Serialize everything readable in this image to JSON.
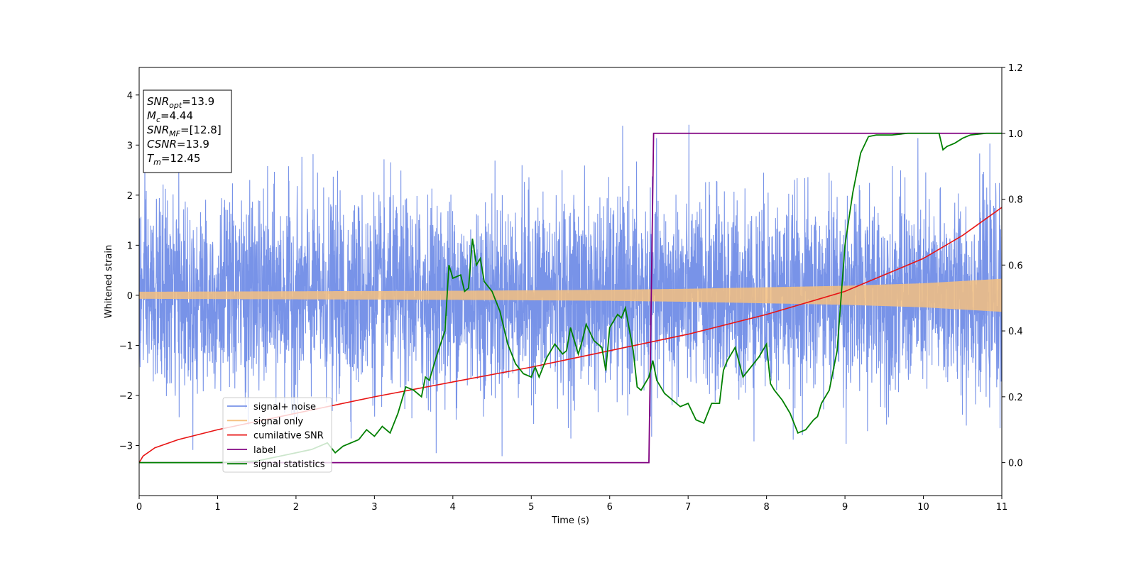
{
  "chart_data": {
    "type": "line",
    "xlabel": "Time (s)",
    "ylabel": "Whitened strain",
    "xlim": [
      0,
      11
    ],
    "ylim": [
      -4,
      4.55
    ],
    "y2lim": [
      -0.1,
      1.2
    ],
    "xticks": [
      0,
      1,
      2,
      3,
      4,
      5,
      6,
      7,
      8,
      9,
      10,
      11
    ],
    "yticks": [
      -3,
      -2,
      -1,
      0,
      1,
      2,
      3,
      4
    ],
    "y2ticks": [
      "0.0",
      "0.2",
      "0.4",
      "0.6",
      "0.8",
      "1.0",
      "1.2"
    ],
    "grid": false,
    "legend_position": "lower-left",
    "annotations": [
      {
        "name": "SNR",
        "sub": "opt",
        "value": "=13.9"
      },
      {
        "name": "M",
        "sub": "c",
        "value": "=4.44"
      },
      {
        "name": "SNR",
        "sub": "MF",
        "value": "=[12.8]"
      },
      {
        "name": "CSNR",
        "sub": "",
        "value": "=13.9"
      },
      {
        "name": "T",
        "sub": "m",
        "value": "=12.45"
      }
    ],
    "series": [
      {
        "name": "signal+ noise",
        "axis": "left",
        "color": "#7893e8",
        "description_envelope": {
          "x": [
            0,
            11
          ],
          "typical_band": [
            -2.0,
            2.0
          ],
          "extreme_max": 4.17,
          "extreme_min": -3.6
        }
      },
      {
        "name": "signal only",
        "axis": "left",
        "color": "#f5c07f",
        "x": [
          0,
          1,
          2,
          3,
          4,
          5,
          6,
          7,
          8,
          9,
          10,
          11
        ],
        "amplitude": [
          0.07,
          0.075,
          0.08,
          0.085,
          0.09,
          0.1,
          0.11,
          0.13,
          0.16,
          0.19,
          0.24,
          0.33
        ]
      },
      {
        "name": "cumilative SNR",
        "axis": "right",
        "color": "#e81414",
        "x": [
          0,
          0.05,
          0.2,
          0.5,
          1,
          2,
          3,
          4,
          5,
          6,
          7,
          8,
          9,
          10,
          10.5,
          11
        ],
        "y": [
          0.0,
          0.02,
          0.045,
          0.07,
          0.1,
          0.15,
          0.2,
          0.245,
          0.29,
          0.34,
          0.39,
          0.45,
          0.52,
          0.62,
          0.69,
          0.775
        ]
      },
      {
        "name": "label",
        "axis": "right",
        "color": "#800080",
        "x": [
          0,
          6.5,
          6.56,
          11
        ],
        "y": [
          0,
          0,
          1,
          1
        ]
      },
      {
        "name": "signal statistics",
        "axis": "right",
        "color": "#008000",
        "x": [
          0,
          1.0,
          1.5,
          2.0,
          2.2,
          2.4,
          2.5,
          2.6,
          2.8,
          2.9,
          3.0,
          3.1,
          3.2,
          3.3,
          3.4,
          3.5,
          3.6,
          3.65,
          3.7,
          3.8,
          3.9,
          3.95,
          4.0,
          4.1,
          4.15,
          4.2,
          4.25,
          4.3,
          4.35,
          4.4,
          4.5,
          4.6,
          4.7,
          4.8,
          4.9,
          5.0,
          5.05,
          5.1,
          5.2,
          5.3,
          5.4,
          5.45,
          5.5,
          5.6,
          5.65,
          5.7,
          5.8,
          5.9,
          5.95,
          6.0,
          6.1,
          6.15,
          6.2,
          6.3,
          6.35,
          6.4,
          6.5,
          6.55,
          6.6,
          6.7,
          6.8,
          6.9,
          7.0,
          7.1,
          7.2,
          7.3,
          7.4,
          7.45,
          7.5,
          7.6,
          7.7,
          7.8,
          7.9,
          8.0,
          8.05,
          8.1,
          8.2,
          8.3,
          8.4,
          8.5,
          8.6,
          8.65,
          8.7,
          8.8,
          8.9,
          9.0,
          9.1,
          9.2,
          9.3,
          9.4,
          9.6,
          9.8,
          10.0,
          10.2,
          10.25,
          10.3,
          10.4,
          10.5,
          10.6,
          10.8,
          11.0
        ],
        "y": [
          0.0,
          0.0,
          0.005,
          0.03,
          0.04,
          0.06,
          0.03,
          0.05,
          0.07,
          0.1,
          0.08,
          0.11,
          0.09,
          0.15,
          0.23,
          0.22,
          0.2,
          0.26,
          0.25,
          0.33,
          0.4,
          0.6,
          0.56,
          0.57,
          0.52,
          0.53,
          0.68,
          0.6,
          0.62,
          0.55,
          0.52,
          0.46,
          0.36,
          0.3,
          0.27,
          0.26,
          0.29,
          0.26,
          0.32,
          0.36,
          0.33,
          0.34,
          0.41,
          0.33,
          0.37,
          0.42,
          0.37,
          0.35,
          0.28,
          0.41,
          0.45,
          0.44,
          0.47,
          0.34,
          0.23,
          0.22,
          0.26,
          0.31,
          0.25,
          0.21,
          0.19,
          0.17,
          0.18,
          0.13,
          0.12,
          0.18,
          0.18,
          0.28,
          0.31,
          0.35,
          0.26,
          0.29,
          0.32,
          0.36,
          0.24,
          0.22,
          0.19,
          0.15,
          0.09,
          0.1,
          0.13,
          0.14,
          0.18,
          0.22,
          0.34,
          0.66,
          0.82,
          0.94,
          0.99,
          0.995,
          0.995,
          1.0,
          1.0,
          1.0,
          0.95,
          0.96,
          0.97,
          0.985,
          0.995,
          1.0,
          1.0
        ]
      }
    ]
  }
}
